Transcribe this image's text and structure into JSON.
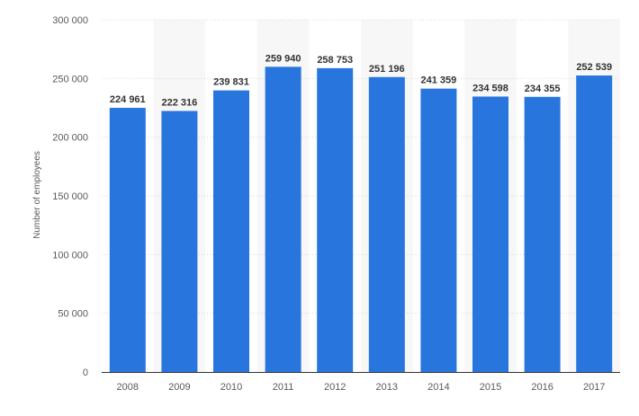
{
  "chart_data": {
    "type": "bar",
    "categories": [
      "2008",
      "2009",
      "2010",
      "2011",
      "2012",
      "2013",
      "2014",
      "2015",
      "2016",
      "2017"
    ],
    "values": [
      224961,
      222316,
      239831,
      259940,
      258753,
      251196,
      241359,
      234598,
      234355,
      252539
    ],
    "value_labels": [
      "224 961",
      "222 316",
      "239 831",
      "259 940",
      "258 753",
      "251 196",
      "241 359",
      "234 598",
      "234 355",
      "252 539"
    ],
    "title": "",
    "xlabel": "",
    "ylabel": "Number of employees",
    "ylim": [
      0,
      300000
    ],
    "yticks": [
      0,
      50000,
      100000,
      150000,
      200000,
      250000,
      300000
    ],
    "ytick_labels": [
      "0",
      "50 000",
      "100 000",
      "150 000",
      "200 000",
      "250 000",
      "300 000"
    ],
    "grid": true,
    "legend": "none",
    "colors": {
      "bar": "#2876dd",
      "band": "#f7f7f7",
      "grid": "#d7d7d7",
      "axis": "#333333"
    }
  }
}
